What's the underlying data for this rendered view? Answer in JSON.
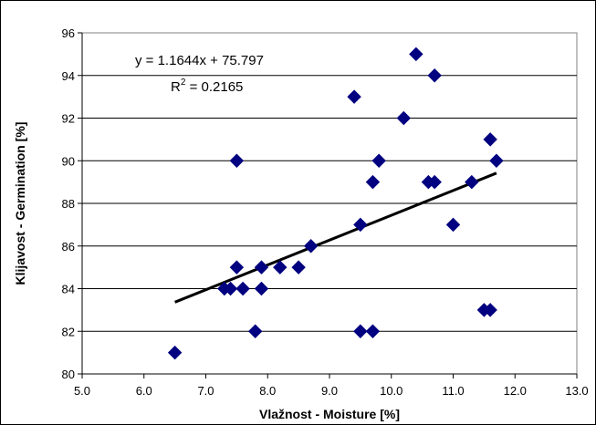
{
  "chart_data": {
    "type": "scatter",
    "xlabel": "Vlažnost - Moisture [%]",
    "ylabel": "Klijavost - Germination [%]",
    "xlim": [
      5.0,
      13.0
    ],
    "ylim": [
      80,
      96
    ],
    "x_ticks": [
      "5.0",
      "6.0",
      "7.0",
      "8.0",
      "9.0",
      "10.0",
      "11.0",
      "12.0",
      "13.0"
    ],
    "y_ticks": [
      "80",
      "82",
      "84",
      "86",
      "88",
      "90",
      "92",
      "94",
      "96"
    ],
    "grid": "horizontal",
    "plot_background": "#ffffff",
    "marker_color": "#000080",
    "trendline_color": "#000000",
    "equation": "y = 1.1644x + 75.797",
    "r_squared_label": "R",
    "r_squared_exp": "2",
    "r_squared_value": " = 0.2165",
    "trendline": {
      "slope": 1.1644,
      "intercept": 75.797,
      "x_range": [
        6.5,
        11.7
      ]
    },
    "points": [
      {
        "x": 6.5,
        "y": 81
      },
      {
        "x": 7.3,
        "y": 84
      },
      {
        "x": 7.4,
        "y": 84
      },
      {
        "x": 7.5,
        "y": 85
      },
      {
        "x": 7.5,
        "y": 90
      },
      {
        "x": 7.6,
        "y": 84
      },
      {
        "x": 7.8,
        "y": 82
      },
      {
        "x": 7.9,
        "y": 85
      },
      {
        "x": 7.9,
        "y": 84
      },
      {
        "x": 8.2,
        "y": 85
      },
      {
        "x": 8.5,
        "y": 85
      },
      {
        "x": 8.7,
        "y": 86
      },
      {
        "x": 9.4,
        "y": 93
      },
      {
        "x": 9.5,
        "y": 87
      },
      {
        "x": 9.5,
        "y": 82
      },
      {
        "x": 9.7,
        "y": 82
      },
      {
        "x": 9.7,
        "y": 89
      },
      {
        "x": 9.8,
        "y": 90
      },
      {
        "x": 10.2,
        "y": 92
      },
      {
        "x": 10.4,
        "y": 95
      },
      {
        "x": 10.6,
        "y": 89
      },
      {
        "x": 10.7,
        "y": 89
      },
      {
        "x": 10.7,
        "y": 94
      },
      {
        "x": 11.0,
        "y": 87
      },
      {
        "x": 11.3,
        "y": 89
      },
      {
        "x": 11.5,
        "y": 83
      },
      {
        "x": 11.6,
        "y": 83
      },
      {
        "x": 11.6,
        "y": 91
      },
      {
        "x": 11.7,
        "y": 90
      }
    ]
  }
}
